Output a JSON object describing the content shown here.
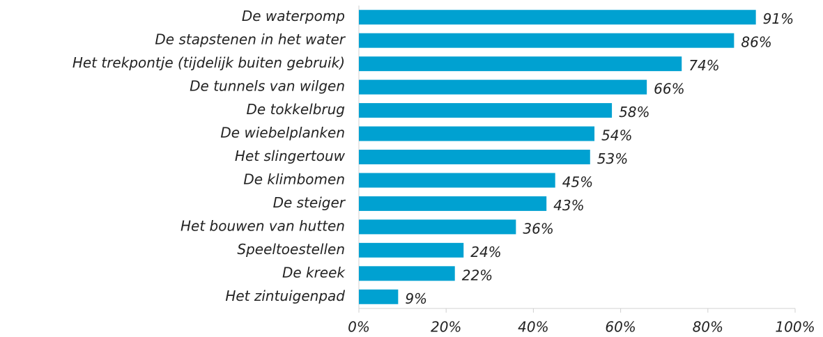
{
  "chart_data": {
    "type": "hbar",
    "categories": [
      "De waterpomp",
      "De stapstenen in het water",
      "Het trekpontje (tijdelijk buiten gebruik)",
      "De tunnels van wilgen",
      "De tokkelbrug",
      "De wiebelplanken",
      "Het slingertouw",
      "De klimbomen",
      "De steiger",
      "Het bouwen van hutten",
      "Speeltoestellen",
      "De kreek",
      "Het zintuigenpad"
    ],
    "values": [
      91,
      86,
      74,
      66,
      58,
      54,
      53,
      45,
      43,
      36,
      24,
      22,
      9
    ],
    "value_labels": [
      "91%",
      "86%",
      "74%",
      "66%",
      "58%",
      "54%",
      "53%",
      "45%",
      "43%",
      "36%",
      "24%",
      "22%",
      "9%"
    ],
    "color": "#00a1d1",
    "xlim": [
      0,
      100
    ],
    "xticks": [
      {
        "value": 0,
        "label": "0%"
      },
      {
        "value": 20,
        "label": "20%"
      },
      {
        "value": 40,
        "label": "40%"
      },
      {
        "value": 60,
        "label": "60%"
      },
      {
        "value": 80,
        "label": "80%"
      },
      {
        "value": 100,
        "label": "100%"
      }
    ]
  }
}
